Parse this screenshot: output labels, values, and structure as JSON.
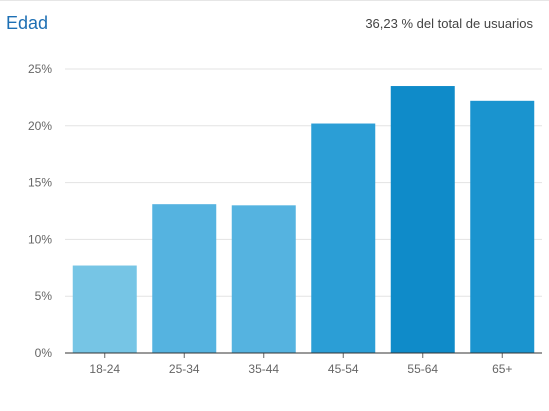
{
  "header": {
    "title": "Edad",
    "summary": "36,23 % del total de usuarios"
  },
  "chart_data": {
    "type": "bar",
    "title": "Edad",
    "subtitle": "36,23 % del total de usuarios",
    "xlabel": "",
    "ylabel": "",
    "categories": [
      "18-24",
      "25-34",
      "35-44",
      "45-54",
      "55-64",
      "65+"
    ],
    "values": [
      7.7,
      13.1,
      13.0,
      20.2,
      23.5,
      22.2
    ],
    "colors": [
      "#76c5e5",
      "#55b3e0",
      "#55b3e0",
      "#2b9ed6",
      "#0f8bc9",
      "#1a94cf"
    ],
    "ylim": [
      0,
      25
    ],
    "yticks": [
      0,
      5,
      10,
      15,
      20,
      25
    ],
    "ytick_labels": [
      "0%",
      "5%",
      "10%",
      "15%",
      "20%",
      "25%"
    ],
    "grid": true,
    "legend": "none"
  }
}
